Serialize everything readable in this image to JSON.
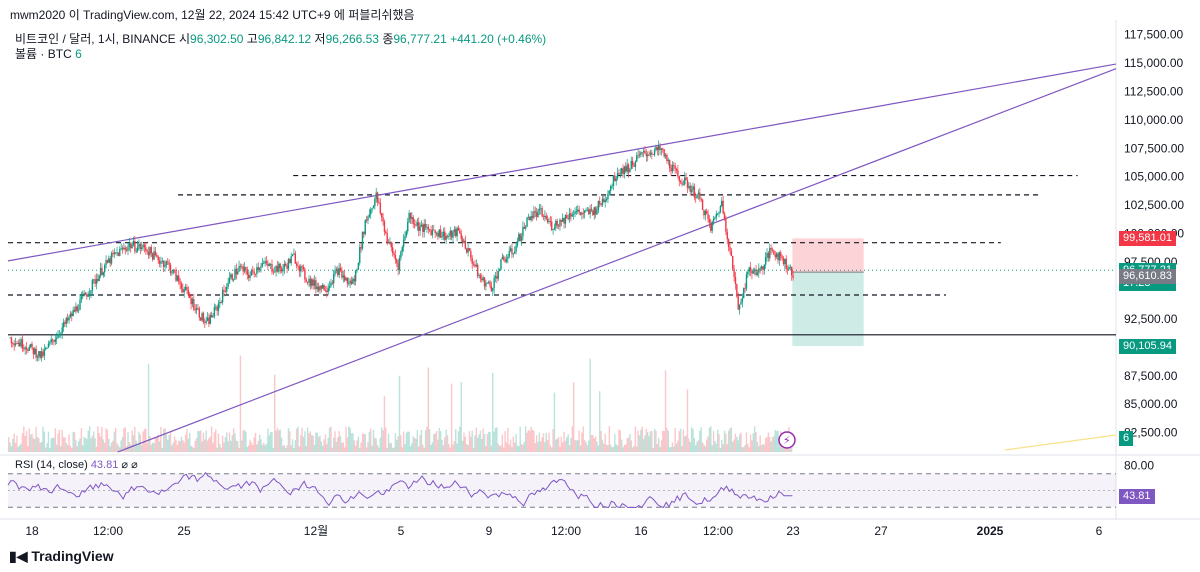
{
  "header": {
    "text": "mwm2020 이 TradingView.com, 12월 22, 2024 15:42 UTC+9 에 퍼블리쉬했음"
  },
  "legend": {
    "symbol": "비트코인 / 달러, 1시, BINANCE",
    "o_label": "시",
    "o": "96,302.50",
    "h_label": "고",
    "h": "96,842.12",
    "l_label": "저",
    "l": "96,266.53",
    "c_label": "종",
    "c": "96,777.21",
    "change": "+441.20 (+0.46%)"
  },
  "volume_legend": {
    "label": "볼륨 · BTC",
    "value": "6"
  },
  "rsi_legend": {
    "label": "RSI (14, close)",
    "value": "43.81",
    "icons": "⌀ ⌀"
  },
  "footer": {
    "logo_text": "TradingView"
  },
  "colors": {
    "up": "#089981",
    "down": "#f23645",
    "trendline": "#7e57c2",
    "rsi": "#7e57c2"
  },
  "chart_data": {
    "type": "candlestick",
    "y_axis": {
      "range": [
        80800,
        118600
      ],
      "ticks": [
        "117,500.00",
        "115,000.00",
        "112,500.00",
        "110,000.00",
        "107,500.00",
        "105,000.00",
        "102,500.00",
        "100,000.00",
        "97,500.00",
        "92,500.00",
        "87,500.00",
        "85,000.00",
        "82,500.00"
      ]
    },
    "x_axis": {
      "ticks": [
        {
          "label": "18",
          "bold": false
        },
        {
          "label": "12:00",
          "bold": false
        },
        {
          "label": "25",
          "bold": false
        },
        {
          "label": "12월",
          "bold": false
        },
        {
          "label": "5",
          "bold": false
        },
        {
          "label": "9",
          "bold": false
        },
        {
          "label": "12:00",
          "bold": false
        },
        {
          "label": "16",
          "bold": false
        },
        {
          "label": "12:00",
          "bold": false
        },
        {
          "label": "23",
          "bold": false
        },
        {
          "label": "27",
          "bold": false
        },
        {
          "label": "2025",
          "bold": true
        },
        {
          "label": "6",
          "bold": false
        }
      ]
    },
    "price_path": [
      [
        0,
        90800
      ],
      [
        3,
        90200
      ],
      [
        6,
        89200
      ],
      [
        8,
        90600
      ],
      [
        11,
        92500
      ],
      [
        14,
        94600
      ],
      [
        17,
        96800
      ],
      [
        19,
        98000
      ],
      [
        22,
        99000
      ],
      [
        25,
        98700
      ],
      [
        27,
        97800
      ],
      [
        29,
        97300
      ],
      [
        31,
        95800
      ],
      [
        34,
        93600
      ],
      [
        36,
        92000
      ],
      [
        38,
        93500
      ],
      [
        40,
        95800
      ],
      [
        42,
        97000
      ],
      [
        44,
        96300
      ],
      [
        46,
        97400
      ],
      [
        48,
        97000
      ],
      [
        50,
        96900
      ],
      [
        52,
        98000
      ],
      [
        54,
        96200
      ],
      [
        56,
        95400
      ],
      [
        58,
        95300
      ],
      [
        60,
        96800
      ],
      [
        62,
        95600
      ],
      [
        63,
        95900
      ],
      [
        65,
        101000
      ],
      [
        67,
        103300
      ],
      [
        69,
        99500
      ],
      [
        71,
        97200
      ],
      [
        73,
        101600
      ],
      [
        75,
        100500
      ],
      [
        78,
        100200
      ],
      [
        80,
        99700
      ],
      [
        82,
        100200
      ],
      [
        84,
        98200
      ],
      [
        86,
        96000
      ],
      [
        88,
        95300
      ],
      [
        90,
        97600
      ],
      [
        92,
        98500
      ],
      [
        95,
        101600
      ],
      [
        97,
        101800
      ],
      [
        99,
        100700
      ],
      [
        101,
        101200
      ],
      [
        103,
        102000
      ],
      [
        105,
        101700
      ],
      [
        107,
        102100
      ],
      [
        109,
        103400
      ],
      [
        111,
        105500
      ],
      [
        113,
        105800
      ],
      [
        115,
        106800
      ],
      [
        117,
        107200
      ],
      [
        119,
        107300
      ],
      [
        120,
        106400
      ],
      [
        122,
        105000
      ],
      [
        124,
        104200
      ],
      [
        126,
        103000
      ],
      [
        128,
        100500
      ],
      [
        130,
        102700
      ],
      [
        131,
        99900
      ],
      [
        132,
        97000
      ],
      [
        133,
        93500
      ],
      [
        135,
        96800
      ],
      [
        137,
        96700
      ],
      [
        139,
        98600
      ],
      [
        141,
        97800
      ],
      [
        143,
        96500
      ]
    ],
    "trend_lines": [
      {
        "points": [
          [
            0,
            97600
          ],
          [
            202,
            114900
          ]
        ]
      },
      {
        "points": [
          [
            20,
            80800
          ],
          [
            202,
            114500
          ]
        ]
      }
    ],
    "horizontal_levels": [
      {
        "price": 105100,
        "from": 52,
        "to": 195,
        "style": "dashed"
      },
      {
        "price": 103400,
        "from": 31,
        "to": 188,
        "style": "dashed"
      },
      {
        "price": 99200,
        "from": 0,
        "to": 181,
        "style": "dashed"
      },
      {
        "price": 94600,
        "from": 0,
        "to": 171,
        "style": "dashed"
      },
      {
        "price": 91100,
        "from": 0,
        "to": 202,
        "style": "solid"
      }
    ],
    "current_price_line": 96777.21,
    "position": {
      "entry": 96610.83,
      "stop": 99581.01,
      "target": 90105.94,
      "from": 143,
      "to": 156
    },
    "price_badges": [
      {
        "text": "99,581.01",
        "price": 99581.01,
        "color": "#f23645"
      },
      {
        "text": "96,777.21",
        "sub": "17:28",
        "price": 96777.21,
        "color": "#089981"
      },
      {
        "text": "96,610.83",
        "price": 96300,
        "color": "#787b86"
      },
      {
        "text": "90,105.94",
        "price": 90105.94,
        "color": "#089981"
      },
      {
        "text": "6",
        "price": 82000,
        "color": "#089981"
      }
    ],
    "rsi": {
      "ticks": [
        "80.00"
      ],
      "upper": 70,
      "lower": 30,
      "mid": 50,
      "value": 43.81,
      "range": [
        22,
        84
      ]
    }
  }
}
